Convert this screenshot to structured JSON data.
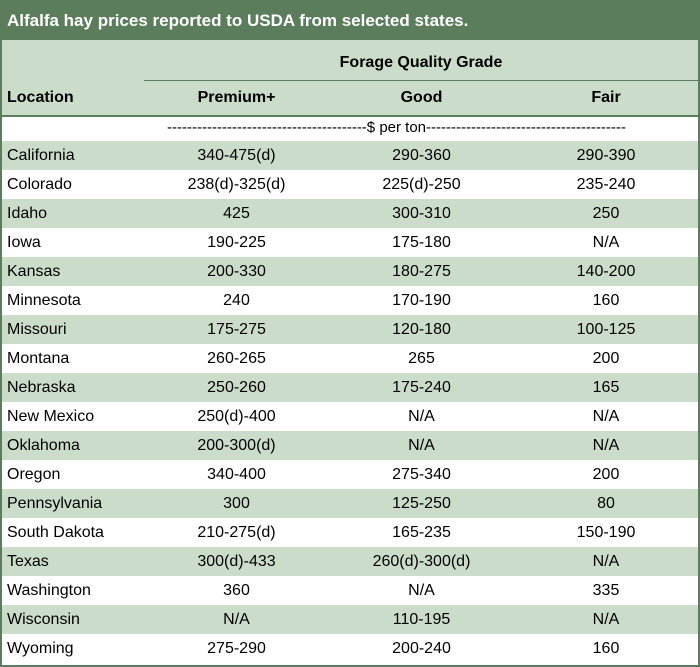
{
  "title": "Alfalfa hay prices reported to USDA from selected states.",
  "header": {
    "group": "Forage Quality Grade",
    "location": "Location",
    "columns": [
      "Premium+",
      "Good",
      "Fair"
    ],
    "unit": "----------------------------------------$ per ton----------------------------------------"
  },
  "rows": [
    {
      "location": "California",
      "premium": "340-475(d)",
      "good": "290-360",
      "fair": "290-390"
    },
    {
      "location": "Colorado",
      "premium": "238(d)-325(d)",
      "good": "225(d)-250",
      "fair": "235-240"
    },
    {
      "location": "Idaho",
      "premium": "425",
      "good": "300-310",
      "fair": "250"
    },
    {
      "location": "Iowa",
      "premium": "190-225",
      "good": "175-180",
      "fair": "N/A"
    },
    {
      "location": "Kansas",
      "premium": "200-330",
      "good": "180-275",
      "fair": "140-200"
    },
    {
      "location": "Minnesota",
      "premium": "240",
      "good": "170-190",
      "fair": "160"
    },
    {
      "location": "Missouri",
      "premium": "175-275",
      "good": "120-180",
      "fair": "100-125"
    },
    {
      "location": "Montana",
      "premium": "260-265",
      "good": "265",
      "fair": "200"
    },
    {
      "location": "Nebraska",
      "premium": "250-260",
      "good": "175-240",
      "fair": "165"
    },
    {
      "location": "New Mexico",
      "premium": "250(d)-400",
      "good": "N/A",
      "fair": "N/A"
    },
    {
      "location": "Oklahoma",
      "premium": "200-300(d)",
      "good": "N/A",
      "fair": "N/A"
    },
    {
      "location": "Oregon",
      "premium": "340-400",
      "good": "275-340",
      "fair": "200"
    },
    {
      "location": "Pennsylvania",
      "premium": "300",
      "good": "125-250",
      "fair": "80"
    },
    {
      "location": "South Dakota",
      "premium": "210-275(d)",
      "good": "165-235",
      "fair": "150-190"
    },
    {
      "location": "Texas",
      "premium": "300(d)-433",
      "good": "260(d)-300(d)",
      "fair": "N/A"
    },
    {
      "location": "Washington",
      "premium": "360",
      "good": "N/A",
      "fair": "335"
    },
    {
      "location": "Wisconsin",
      "premium": "N/A",
      "good": "110-195",
      "fair": "N/A"
    },
    {
      "location": "Wyoming",
      "premium": "275-290",
      "good": "200-240",
      "fair": "160"
    }
  ]
}
